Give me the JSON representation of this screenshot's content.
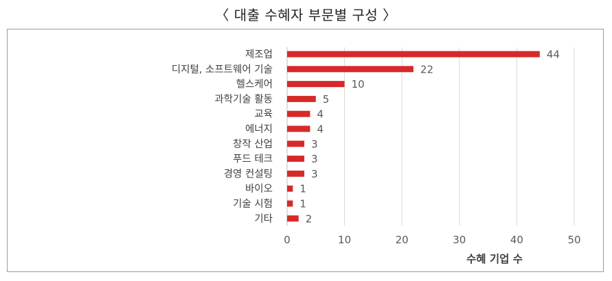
{
  "title": "〈 대출 수혜자 부문별 구성 〉",
  "chart_data": {
    "type": "bar",
    "orientation": "horizontal",
    "title": "〈 대출 수혜자 부문별 구성 〉",
    "xlabel": "수혜 기업 수",
    "ylabel": "",
    "categories": [
      "제조업",
      "디지털, 소프트웨어 기술",
      "헬스케어",
      "과학기술 활동",
      "교육",
      "에너지",
      "창작 산업",
      "푸드 테크",
      "경영 컨설팅",
      "바이오",
      "기술 시험",
      "기타"
    ],
    "values": [
      44,
      22,
      10,
      5,
      4,
      4,
      3,
      3,
      3,
      1,
      1,
      2
    ],
    "xlim": [
      0,
      50
    ],
    "xticks": [
      0,
      10,
      20,
      30,
      40,
      50
    ],
    "grid": true,
    "bar_color": "#d62a28",
    "data_labels": true
  }
}
